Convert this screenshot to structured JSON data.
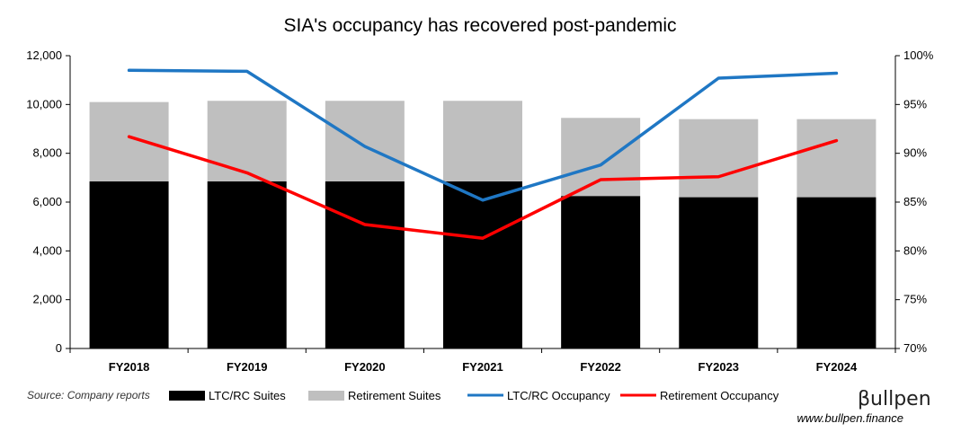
{
  "chart_data": {
    "type": "bar",
    "title": "SIA's occupancy has recovered post-pandemic",
    "categories": [
      "FY2018",
      "FY2019",
      "FY2020",
      "FY2021",
      "FY2022",
      "FY2023",
      "FY2024"
    ],
    "stacked": true,
    "series": [
      {
        "name": "LTC/RC Suites",
        "kind": "bar",
        "axis": "left",
        "color": "#000000",
        "values": [
          6850,
          6850,
          6850,
          6850,
          6250,
          6200,
          6200
        ]
      },
      {
        "name": "Retirement Suites",
        "kind": "bar",
        "axis": "left",
        "color": "#bfbfbf",
        "values": [
          3250,
          3300,
          3300,
          3300,
          3200,
          3200,
          3200
        ]
      },
      {
        "name": "LTC/RC Occupancy",
        "kind": "line",
        "axis": "right",
        "color": "#1f77c4",
        "values": [
          98.5,
          98.4,
          90.7,
          85.2,
          88.8,
          97.7,
          98.2
        ]
      },
      {
        "name": "Retirement Occupancy",
        "kind": "line",
        "axis": "right",
        "color": "#ff0000",
        "values": [
          91.7,
          88.0,
          82.7,
          81.3,
          87.3,
          87.6,
          91.3
        ]
      }
    ],
    "y_left": {
      "min": 0,
      "max": 12000,
      "ticks": [
        0,
        2000,
        4000,
        6000,
        8000,
        10000,
        12000
      ],
      "tick_labels": [
        "0",
        "2,000",
        "4,000",
        "6,000",
        "8,000",
        "10,000",
        "12,000"
      ]
    },
    "y_right": {
      "min": 70,
      "max": 100,
      "ticks": [
        70,
        75,
        80,
        85,
        90,
        95,
        100
      ],
      "tick_labels": [
        "70%",
        "75%",
        "80%",
        "85%",
        "90%",
        "95%",
        "100%"
      ]
    },
    "grid": false,
    "legend_position": "bottom"
  },
  "footer": {
    "source": "Source: Company reports",
    "brand": "βullpen",
    "url": "www.bullpen.finance"
  }
}
